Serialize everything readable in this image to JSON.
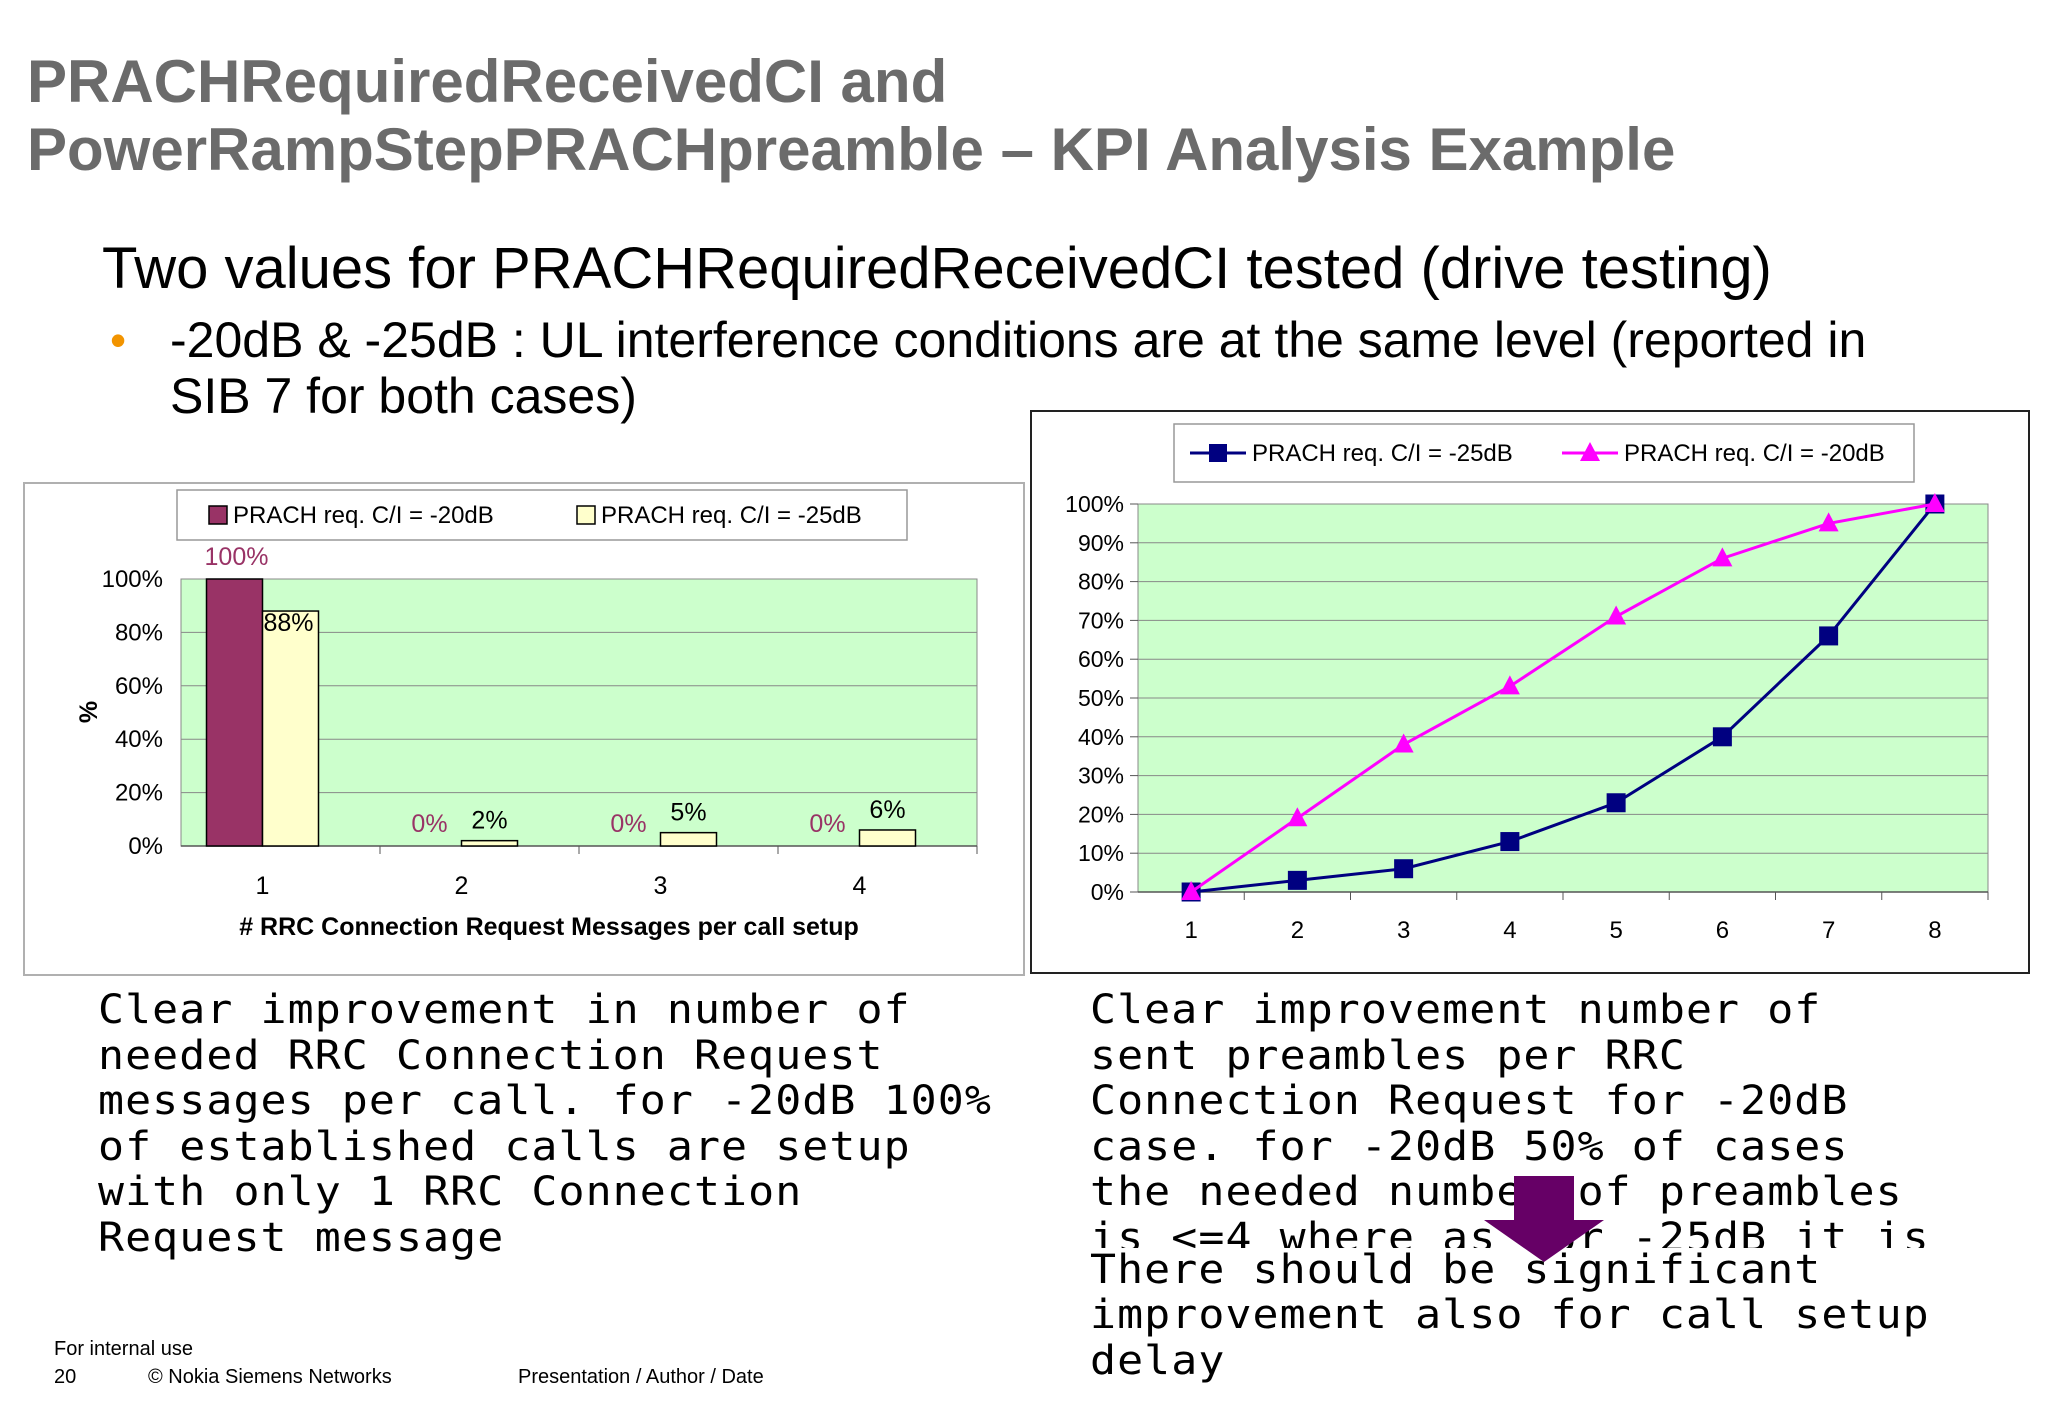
{
  "slide": {
    "title_line1": "PRACHRequiredReceivedCI and",
    "title_line2": "PowerRampStepPRACHpreamble – KPI Analysis Example",
    "subtitle": "Two values for PRACHRequiredReceivedCI tested (drive testing)",
    "bullet_text": "-20dB & -25dB : UL interference conditions are at the same level (reported in SIB 7 for both cases)",
    "bullet_symbol": "•",
    "accent_color": "#f29400",
    "title_color": "#6b6b6b"
  },
  "chart_data": [
    {
      "type": "bar",
      "categories": [
        "1",
        "2",
        "3",
        "4"
      ],
      "series": [
        {
          "name": "PRACH req. C/I = -20dB",
          "values": [
            100,
            0,
            0,
            0
          ],
          "labels": [
            "100%",
            "0%",
            "0%",
            "0%"
          ],
          "color": "#993366"
        },
        {
          "name": "PRACH req. C/I = -25dB",
          "values": [
            88,
            2,
            5,
            6
          ],
          "labels": [
            "88%",
            "2%",
            "5%",
            "6%"
          ],
          "color": "#ffffcc"
        }
      ],
      "yticks": [
        "0%",
        "20%",
        "40%",
        "60%",
        "80%",
        "100%"
      ],
      "ylim": [
        0,
        100
      ],
      "xlabel": "# RRC Connection Request Messages per call setup",
      "ylabel": "%",
      "legend": "top",
      "grid": true,
      "plot_bg": "#ccffcc"
    },
    {
      "type": "line",
      "x": [
        "1",
        "2",
        "3",
        "4",
        "5",
        "6",
        "7",
        "8"
      ],
      "series": [
        {
          "name": "PRACH req. C/I = -25dB",
          "values": [
            0,
            3,
            6,
            13,
            23,
            40,
            66,
            100
          ],
          "color": "#000080",
          "marker": "square"
        },
        {
          "name": "PRACH req. C/I = -20dB",
          "values": [
            0,
            19,
            38,
            53,
            71,
            86,
            95,
            100
          ],
          "color": "#ff00ff",
          "marker": "triangle"
        }
      ],
      "yticks": [
        "0%",
        "10%",
        "20%",
        "30%",
        "40%",
        "50%",
        "60%",
        "70%",
        "80%",
        "90%",
        "100%"
      ],
      "ylim": [
        0,
        100
      ],
      "xlabel": "",
      "ylabel": "",
      "legend": "top",
      "grid": true,
      "plot_bg": "#ccffcc"
    }
  ],
  "notes": {
    "left": [
      "Clear improvement in number of",
      "needed RRC Connection Request",
      "messages per call. for -20dB 100%",
      "of established calls are setup",
      "with only 1 RRC Connection",
      "Request message"
    ],
    "right": [
      "Clear improvement number of",
      "sent preambles per RRC",
      "Connection Request for -20dB",
      "case. for -20dB 50% of cases",
      "the needed number of preambles",
      "is <=4 where as for -25dB it is",
      "There should be significant",
      "improvement also for call setup",
      "delay"
    ],
    "arrow_color": "#660066"
  },
  "footer": {
    "classification": "For internal use",
    "page_number": "20",
    "copyright": "© Nokia Siemens Networks",
    "presentation": "Presentation / Author / Date"
  }
}
